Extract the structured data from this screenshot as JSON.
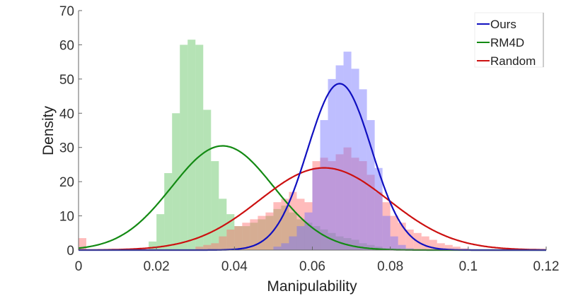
{
  "chart_data": {
    "type": "histogram-with-fit",
    "title": "",
    "xlabel": "Manipulability",
    "ylabel": "Density",
    "xlim": [
      0,
      0.12
    ],
    "ylim": [
      0,
      70
    ],
    "xticks": [
      "0",
      "0.02",
      "0.04",
      "0.06",
      "0.08",
      "0.1",
      "0.12"
    ],
    "xtick_values": [
      0,
      0.02,
      0.04,
      0.06,
      0.08,
      0.1,
      0.12
    ],
    "yticks": [
      "0",
      "10",
      "20",
      "30",
      "40",
      "50",
      "60",
      "70"
    ],
    "ytick_values": [
      0,
      10,
      20,
      30,
      40,
      50,
      60,
      70
    ],
    "grid": false,
    "legend_position": "top-right",
    "bin_width": 0.002,
    "series": [
      {
        "name": "Ours",
        "line_color": "#1010c0",
        "fill_color": "#6f6fff",
        "fit": {
          "mean": 0.067,
          "std": 0.0082
        },
        "bins_start": [
          0.05,
          0.052,
          0.054,
          0.056,
          0.058,
          0.06,
          0.062,
          0.064,
          0.066,
          0.068,
          0.07,
          0.072,
          0.074,
          0.076,
          0.078,
          0.08,
          0.082,
          0.084
        ],
        "density": [
          1,
          2,
          4,
          7,
          11,
          24,
          38,
          50,
          54,
          58,
          53,
          47,
          38,
          24,
          10,
          4,
          1.5,
          0.5
        ]
      },
      {
        "name": "RM4D",
        "line_color": "#138a13",
        "fill_color": "#5cc05c",
        "fit": {
          "mean": 0.037,
          "std": 0.0131
        },
        "bins_start": [
          0.018,
          0.02,
          0.022,
          0.024,
          0.026,
          0.028,
          0.03,
          0.032,
          0.034,
          0.036,
          0.038,
          0.04,
          0.042,
          0.044,
          0.046,
          0.048,
          0.05,
          0.052,
          0.054,
          0.056,
          0.058,
          0.06,
          0.062,
          0.064,
          0.066,
          0.068,
          0.07,
          0.072,
          0.074,
          0.076,
          0.078
        ],
        "density": [
          2.5,
          10.5,
          22.5,
          40,
          60,
          61.5,
          60,
          41,
          26,
          15,
          10.5,
          7,
          7,
          8,
          9,
          10,
          12,
          13,
          11,
          9,
          8,
          7,
          6,
          5,
          4,
          3.5,
          3,
          2,
          1.5,
          1,
          0.5
        ]
      },
      {
        "name": "Random",
        "line_color": "#cc1010",
        "fill_color": "#ff6b6b",
        "fit": {
          "mean": 0.063,
          "std": 0.0166
        },
        "bins_start": [
          0.0,
          0.03,
          0.032,
          0.034,
          0.036,
          0.038,
          0.04,
          0.042,
          0.044,
          0.046,
          0.048,
          0.05,
          0.052,
          0.054,
          0.056,
          0.058,
          0.06,
          0.062,
          0.064,
          0.066,
          0.068,
          0.07,
          0.072,
          0.074,
          0.076,
          0.078,
          0.08,
          0.082,
          0.084,
          0.086,
          0.088,
          0.09,
          0.092,
          0.094,
          0.096,
          0.098
        ],
        "density": [
          3.5,
          1,
          1.5,
          2,
          4,
          6,
          7,
          8,
          9,
          10,
          11,
          14,
          15,
          17,
          15,
          14,
          26,
          27,
          26,
          28,
          30,
          27,
          26,
          22,
          17,
          14,
          10,
          8,
          6,
          5,
          4,
          3,
          2,
          1.5,
          1,
          0.5
        ]
      }
    ]
  }
}
